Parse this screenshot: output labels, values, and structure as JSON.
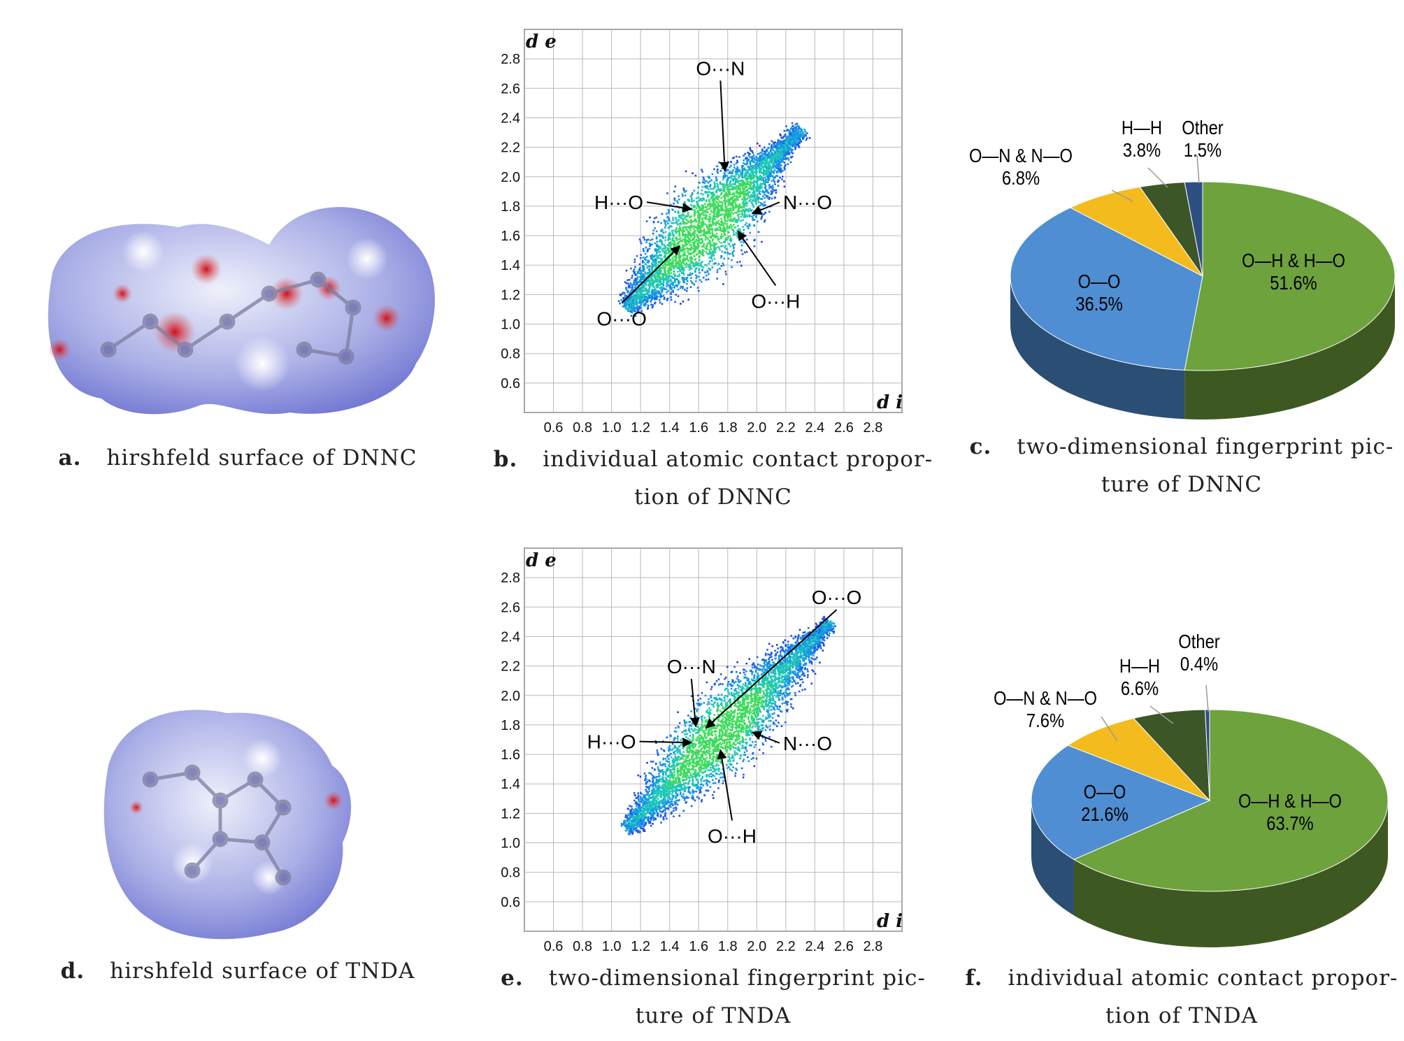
{
  "colors": {
    "green": "#6ea23c",
    "blue": "#4f8ed2",
    "yellow": "#f4bb1e",
    "darkgreen": "#3c5628",
    "navy": "#2e4f82"
  },
  "captions": {
    "a": {
      "letter": "a.",
      "text": "hirshfeld surface of DNNC"
    },
    "b": {
      "letter": "b.",
      "text": "individual atomic contact propor-",
      "text2": "tion of DNNC"
    },
    "c": {
      "letter": "c.",
      "text": "two-dimensional fingerprint pic-",
      "text2": "ture of DNNC"
    },
    "d": {
      "letter": "d.",
      "text": "hirshfeld surface of TNDA"
    },
    "e": {
      "letter": "e.",
      "text": "two-dimensional fingerprint pic-",
      "text2": "ture of TNDA"
    },
    "f": {
      "letter": "f.",
      "text": "individual atomic contact propor-",
      "text2": "tion of TNDA"
    }
  },
  "chart_data": [
    {
      "id": "fingerprint-dnnc",
      "type": "scatter",
      "xlabel": "d i",
      "ylabel": "d e",
      "xticks": [
        "0.6",
        "0.8",
        "1.0",
        "1.2",
        "1.4",
        "1.6",
        "1.8",
        "2.0",
        "2.2",
        "2.4",
        "2.6",
        "2.8"
      ],
      "yticks": [
        "0.6",
        "0.8",
        "1.0",
        "1.2",
        "1.4",
        "1.6",
        "1.8",
        "2.0",
        "2.2",
        "2.4",
        "2.6",
        "2.8"
      ],
      "xlim": [
        0.4,
        3.0
      ],
      "ylim": [
        0.4,
        3.0
      ],
      "grid": true,
      "annotations": [
        {
          "label": "O···N",
          "text_at": [
            1.75,
            2.69
          ],
          "arrow_to": [
            1.78,
            2.04
          ]
        },
        {
          "label": "H···O",
          "text_at": [
            1.05,
            1.78
          ],
          "arrow_to": [
            1.55,
            1.78
          ]
        },
        {
          "label": "N···O",
          "text_at": [
            2.35,
            1.78
          ],
          "arrow_to": [
            1.97,
            1.75
          ]
        },
        {
          "label": "O···O",
          "text_at": [
            1.07,
            0.99
          ],
          "arrow_to": [
            1.47,
            1.53
          ]
        },
        {
          "label": "O···H",
          "text_at": [
            2.13,
            1.11
          ],
          "arrow_to": [
            1.87,
            1.63
          ]
        }
      ]
    },
    {
      "id": "pie-dnnc",
      "type": "pie",
      "slices": [
        {
          "label": "O—H & H—O",
          "value": 51.6,
          "pct": "51.6%"
        },
        {
          "label": "O—O",
          "value": 36.5,
          "pct": "36.5%"
        },
        {
          "label": "O—N & N—O",
          "value": 6.8,
          "pct": "6.8%"
        },
        {
          "label": "H—H",
          "value": 3.8,
          "pct": "3.8%"
        },
        {
          "label": "Other",
          "value": 1.5,
          "pct": "1.5%"
        }
      ]
    },
    {
      "id": "fingerprint-tnda",
      "type": "scatter",
      "xlabel": "d i",
      "ylabel": "d e",
      "xticks": [
        "0.6",
        "0.8",
        "1.0",
        "1.2",
        "1.4",
        "1.6",
        "1.8",
        "2.0",
        "2.2",
        "2.4",
        "2.6",
        "2.8"
      ],
      "yticks": [
        "0.6",
        "0.8",
        "1.0",
        "1.2",
        "1.4",
        "1.6",
        "1.8",
        "2.0",
        "2.2",
        "2.4",
        "2.6",
        "2.8"
      ],
      "xlim": [
        0.4,
        3.0
      ],
      "ylim": [
        0.4,
        3.0
      ],
      "grid": true,
      "annotations": [
        {
          "label": "O···O",
          "text_at": [
            2.55,
            2.62
          ],
          "arrow_to": [
            1.65,
            1.78
          ]
        },
        {
          "label": "O···N",
          "text_at": [
            1.55,
            2.15
          ],
          "arrow_to": [
            1.58,
            1.79
          ]
        },
        {
          "label": "H···O",
          "text_at": [
            1.0,
            1.64
          ],
          "arrow_to": [
            1.55,
            1.68
          ]
        },
        {
          "label": "N···O",
          "text_at": [
            2.35,
            1.63
          ],
          "arrow_to": [
            1.97,
            1.75
          ]
        },
        {
          "label": "O···H",
          "text_at": [
            1.83,
            1.0
          ],
          "arrow_to": [
            1.75,
            1.63
          ]
        }
      ]
    },
    {
      "id": "pie-tnda",
      "type": "pie",
      "slices": [
        {
          "label": "O—H & H—O",
          "value": 63.7,
          "pct": "63.7%"
        },
        {
          "label": "O—O",
          "value": 21.6,
          "pct": "21.6%"
        },
        {
          "label": "O—N & N—O",
          "value": 7.6,
          "pct": "7.6%"
        },
        {
          "label": "H—H",
          "value": 6.6,
          "pct": "6.6%"
        },
        {
          "label": "Other",
          "value": 0.4,
          "pct": "0.4%"
        }
      ]
    }
  ]
}
